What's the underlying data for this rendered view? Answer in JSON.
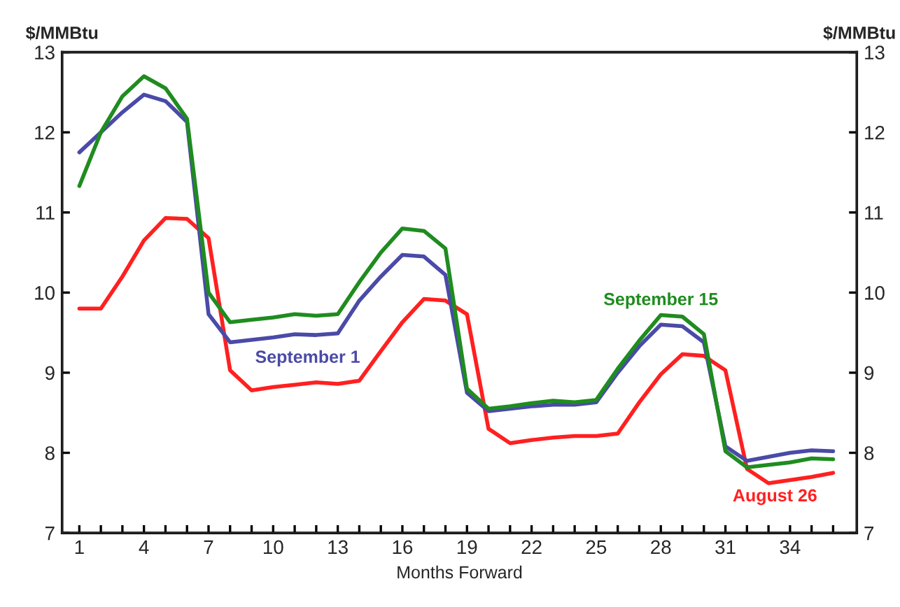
{
  "chart_data": {
    "type": "line",
    "xlabel": "Months Forward",
    "ylabel": "$/MMBtu",
    "y2label": "$/MMBtu",
    "x": [
      1,
      2,
      3,
      4,
      5,
      6,
      7,
      8,
      9,
      10,
      11,
      12,
      13,
      14,
      15,
      16,
      17,
      18,
      19,
      20,
      21,
      22,
      23,
      24,
      25,
      26,
      27,
      28,
      29,
      30,
      31,
      32,
      33,
      34,
      35,
      36
    ],
    "series": [
      {
        "name": "August 26",
        "color": "#ff2020",
        "values": [
          9.8,
          9.8,
          10.2,
          10.65,
          10.93,
          10.92,
          10.68,
          9.03,
          8.78,
          8.82,
          8.85,
          8.88,
          8.86,
          8.9,
          9.27,
          9.63,
          9.92,
          9.9,
          9.73,
          8.3,
          8.12,
          8.16,
          8.19,
          8.21,
          8.21,
          8.24,
          8.63,
          8.98,
          9.23,
          9.21,
          9.03,
          7.8,
          7.62,
          7.66,
          7.7,
          7.75
        ]
      },
      {
        "name": "September 1",
        "color": "#4a4aa8",
        "values": [
          11.75,
          12.0,
          12.25,
          12.47,
          12.39,
          12.13,
          9.73,
          9.38,
          9.41,
          9.44,
          9.48,
          9.47,
          9.49,
          9.9,
          10.2,
          10.47,
          10.45,
          10.22,
          8.75,
          8.52,
          8.55,
          8.58,
          8.6,
          8.6,
          8.63,
          9.0,
          9.33,
          9.6,
          9.58,
          9.38,
          8.08,
          7.9,
          7.95,
          8.0,
          8.03,
          8.02
        ]
      },
      {
        "name": "September 15",
        "color": "#1f8c1f",
        "values": [
          11.33,
          12.0,
          12.45,
          12.7,
          12.55,
          12.17,
          10.0,
          9.63,
          9.66,
          9.69,
          9.73,
          9.71,
          9.73,
          10.13,
          10.5,
          10.8,
          10.77,
          10.55,
          8.8,
          8.55,
          8.58,
          8.62,
          8.65,
          8.63,
          8.66,
          9.05,
          9.4,
          9.72,
          9.7,
          9.48,
          8.02,
          7.82,
          7.85,
          7.88,
          7.93,
          7.92
        ]
      }
    ],
    "xlim": [
      0.2,
      37.1
    ],
    "xticks": [
      1,
      {
        "value": 2,
        "label": null
      },
      {
        "value": 3,
        "label": null
      },
      4,
      {
        "value": 5,
        "label": null
      },
      {
        "value": 6,
        "label": null
      },
      7,
      {
        "value": 8,
        "label": null
      },
      {
        "value": 9,
        "label": null
      },
      10,
      {
        "value": 11,
        "label": null
      },
      {
        "value": 12,
        "label": null
      },
      13,
      {
        "value": 14,
        "label": null
      },
      {
        "value": 15,
        "label": null
      },
      16,
      {
        "value": 17,
        "label": null
      },
      {
        "value": 18,
        "label": null
      },
      19,
      {
        "value": 20,
        "label": null
      },
      {
        "value": 21,
        "label": null
      },
      22,
      {
        "value": 23,
        "label": null
      },
      {
        "value": 24,
        "label": null
      },
      25,
      {
        "value": 26,
        "label": null
      },
      {
        "value": 27,
        "label": null
      },
      28,
      {
        "value": 29,
        "label": null
      },
      {
        "value": 30,
        "label": null
      },
      31,
      {
        "value": 32,
        "label": null
      },
      {
        "value": 33,
        "label": null
      },
      34,
      {
        "value": 35,
        "label": null
      },
      {
        "value": 36,
        "label": null
      }
    ],
    "ylim": [
      7,
      13
    ],
    "yticks": [
      7,
      8,
      9,
      10,
      11,
      12,
      13
    ],
    "y2lim": [
      7,
      13
    ],
    "y2ticks": [
      7,
      8,
      9,
      10,
      11,
      12,
      13
    ],
    "grid": false,
    "legend": false,
    "marker": "none",
    "line_style": "solid"
  }
}
